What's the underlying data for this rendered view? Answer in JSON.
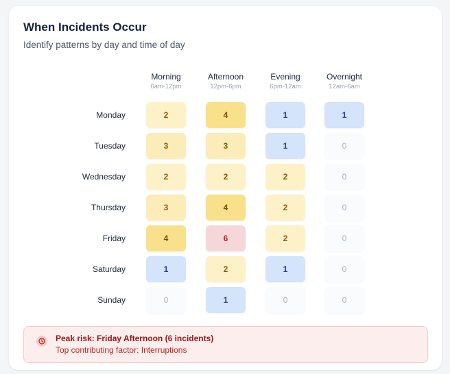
{
  "card": {
    "title": "When Incidents Occur",
    "subtitle": "Identify patterns by day and time of day"
  },
  "columns": [
    {
      "period": "Morning",
      "range": "6am-12pm"
    },
    {
      "period": "Afternoon",
      "range": "12pm-6pm"
    },
    {
      "period": "Evening",
      "range": "6pm-12am"
    },
    {
      "period": "Overnight",
      "range": "12am-6am"
    }
  ],
  "rows": [
    {
      "day": "Monday",
      "values": [
        "2",
        "4",
        "1",
        "1"
      ]
    },
    {
      "day": "Tuesday",
      "values": [
        "3",
        "3",
        "1",
        "0"
      ]
    },
    {
      "day": "Wednesday",
      "values": [
        "2",
        "2",
        "2",
        "0"
      ]
    },
    {
      "day": "Thursday",
      "values": [
        "3",
        "4",
        "2",
        "0"
      ]
    },
    {
      "day": "Friday",
      "values": [
        "4",
        "6",
        "2",
        "0"
      ]
    },
    {
      "day": "Saturday",
      "values": [
        "1",
        "2",
        "1",
        "0"
      ]
    },
    {
      "day": "Sunday",
      "values": [
        "0",
        "1",
        "0",
        "0"
      ]
    }
  ],
  "alert": {
    "icon": "clock-icon",
    "headline": "Peak risk: Friday Afternoon (6 incidents)",
    "detail": "Top contributing factor: Interruptions"
  },
  "colors": {
    "zero": "#f9fbfd",
    "low": "#d3e4fb",
    "medium": "#fdf1c8",
    "high": "#f9e08a",
    "peak": "#f6d7d9",
    "alert_text": "#9b1414"
  }
}
